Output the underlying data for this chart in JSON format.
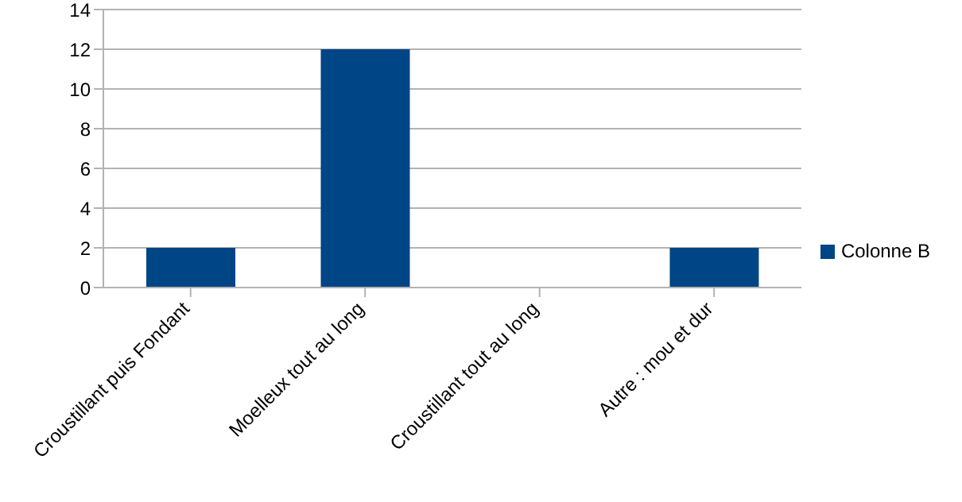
{
  "chart_data": {
    "type": "bar",
    "categories": [
      "Croustillant puis Fondant",
      "Moelleux tout au long",
      "Croustillant tout au long",
      "Autre : mou et dur"
    ],
    "series": [
      {
        "name": "Colonne B",
        "color": "#004586",
        "values": [
          2,
          12,
          0,
          2
        ]
      }
    ],
    "ylim": [
      0,
      14
    ],
    "yticks": [
      0,
      2,
      4,
      6,
      8,
      10,
      12,
      14
    ],
    "grid": "y",
    "legend": "right"
  }
}
